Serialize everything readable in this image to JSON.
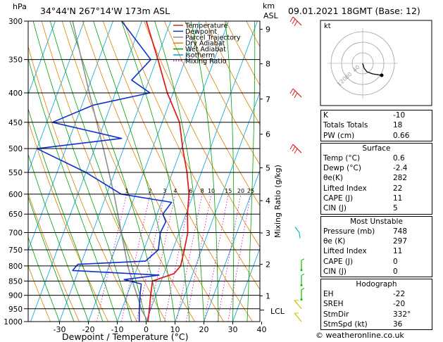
{
  "header": {
    "title": "34°44'N  267°14'W  173m  ASL",
    "datetime": "09.01.2021  18GMT  (Base: 12)",
    "pressure_unit": "hPa",
    "height_unit_km": "km",
    "height_unit_asl": "ASL"
  },
  "chart_data": {
    "type": "skew-t",
    "xlabel": "Dewpoint / Temperature (°C)",
    "right_label": "Mixing Ratio (g/kg)",
    "pressure_levels": [
      300,
      350,
      400,
      450,
      500,
      550,
      600,
      650,
      700,
      750,
      800,
      850,
      900,
      950,
      1000
    ],
    "temp_ticks": [
      -30,
      -20,
      -10,
      0,
      10,
      20,
      30,
      40
    ],
    "temp_range": [
      -35,
      40
    ],
    "height_ticks": [
      {
        "km": "9",
        "p": 310
      },
      {
        "km": "8",
        "p": 356
      },
      {
        "km": "7",
        "p": 410
      },
      {
        "km": "6",
        "p": 472
      },
      {
        "km": "5",
        "p": 540
      },
      {
        "km": "4",
        "p": 616
      },
      {
        "km": "3",
        "p": 701
      },
      {
        "km": "2",
        "p": 795
      },
      {
        "km": "1",
        "p": 902
      }
    ],
    "lcl_label": "LCL",
    "lcl_p": 955,
    "mixing_ratios": [
      "1",
      "2",
      "3",
      "4",
      "6",
      "8",
      "10",
      "15",
      "20",
      "25"
    ],
    "legend": [
      {
        "name": "Temperature",
        "color": "#e02020",
        "style": "solid"
      },
      {
        "name": "Dewpoint",
        "color": "#1030d0",
        "style": "solid"
      },
      {
        "name": "Parcel Trajectory",
        "color": "#909090",
        "style": "solid"
      },
      {
        "name": "Dry Adiabat",
        "color": "#e08000",
        "style": "solid"
      },
      {
        "name": "Wet Adiabat",
        "color": "#00a000",
        "style": "solid"
      },
      {
        "name": "Isotherm",
        "color": "#00a0e0",
        "style": "solid"
      },
      {
        "name": "Mixing Ratio",
        "color": "#d000d0",
        "style": "dotted"
      }
    ],
    "temperature": [
      {
        "p": 1000,
        "t": 0.6
      },
      {
        "p": 950,
        "t": -0.5
      },
      {
        "p": 900,
        "t": -1.8
      },
      {
        "p": 850,
        "t": -3.0
      },
      {
        "p": 825,
        "t": 3.5
      },
      {
        "p": 800,
        "t": 4.8
      },
      {
        "p": 750,
        "t": 4.0
      },
      {
        "p": 700,
        "t": 3.0
      },
      {
        "p": 650,
        "t": 0.5
      },
      {
        "p": 600,
        "t": -1.5
      },
      {
        "p": 550,
        "t": -5.0
      },
      {
        "p": 500,
        "t": -9.5
      },
      {
        "p": 450,
        "t": -14.0
      },
      {
        "p": 400,
        "t": -22.0
      },
      {
        "p": 350,
        "t": -29.5
      },
      {
        "p": 300,
        "t": -38.5
      }
    ],
    "dewpoint": [
      {
        "p": 1000,
        "t": -2.4
      },
      {
        "p": 950,
        "t": -4.0
      },
      {
        "p": 900,
        "t": -5.5
      },
      {
        "p": 860,
        "t": -6.5
      },
      {
        "p": 845,
        "t": -13.0
      },
      {
        "p": 830,
        "t": -1.5
      },
      {
        "p": 815,
        "t": -32.0
      },
      {
        "p": 795,
        "t": -31.0
      },
      {
        "p": 785,
        "t": -8.0
      },
      {
        "p": 750,
        "t": -5.0
      },
      {
        "p": 700,
        "t": -6.5
      },
      {
        "p": 670,
        "t": -6.0
      },
      {
        "p": 650,
        "t": -8.0
      },
      {
        "p": 620,
        "t": -6.5
      },
      {
        "p": 600,
        "t": -25.0
      },
      {
        "p": 550,
        "t": -40.0
      },
      {
        "p": 500,
        "t": -60.0
      },
      {
        "p": 480,
        "t": -32.0
      },
      {
        "p": 450,
        "t": -58.0
      },
      {
        "p": 420,
        "t": -46.0
      },
      {
        "p": 400,
        "t": -28.0
      },
      {
        "p": 380,
        "t": -36.0
      },
      {
        "p": 350,
        "t": -32.0
      },
      {
        "p": 300,
        "t": -47.0
      }
    ],
    "parcel": [
      {
        "p": 1000,
        "t": 0.6
      },
      {
        "p": 955,
        "t": -3.0
      },
      {
        "p": 900,
        "t": -6.5
      },
      {
        "p": 850,
        "t": -10.0
      },
      {
        "p": 800,
        "t": -13.5
      },
      {
        "p": 700,
        "t": -20.0
      },
      {
        "p": 600,
        "t": -27.5
      },
      {
        "p": 500,
        "t": -37.0
      },
      {
        "p": 400,
        "t": -49.0
      },
      {
        "p": 300,
        "t": -64.0
      }
    ],
    "wind_barbs": [
      {
        "p": 300,
        "color": "#e02020"
      },
      {
        "p": 400,
        "color": "#e02020"
      },
      {
        "p": 500,
        "color": "#e02020"
      },
      {
        "p": 700,
        "color": "#00c0c0"
      },
      {
        "p": 800,
        "color": "#00c000"
      },
      {
        "p": 850,
        "color": "#00c000"
      },
      {
        "p": 900,
        "color": "#00c000"
      },
      {
        "p": 950,
        "color": "#d0c000"
      },
      {
        "p": 1000,
        "color": "#d0c000"
      }
    ]
  },
  "hodograph": {
    "unit_label": "kt",
    "ring_labels": [
      "40",
      "80",
      "120"
    ]
  },
  "indices": [
    {
      "label": "K",
      "value": "-10"
    },
    {
      "label": "Totals Totals",
      "value": "18"
    },
    {
      "label": "PW (cm)",
      "value": "0.66"
    }
  ],
  "surface": {
    "title": "Surface",
    "rows": [
      {
        "label": "Temp (°C)",
        "value": "0.6"
      },
      {
        "label": "Dewp (°C)",
        "value": "-2.4"
      },
      {
        "label": "θe(K)",
        "value": "282"
      },
      {
        "label": "Lifted Index",
        "value": "22"
      },
      {
        "label": "CAPE (J)",
        "value": "11"
      },
      {
        "label": "CIN (J)",
        "value": "5"
      }
    ]
  },
  "most_unstable": {
    "title": "Most Unstable",
    "rows": [
      {
        "label": "Pressure (mb)",
        "value": "748"
      },
      {
        "label": "θe (K)",
        "value": "297"
      },
      {
        "label": "Lifted Index",
        "value": "11"
      },
      {
        "label": "CAPE (J)",
        "value": "0"
      },
      {
        "label": "CIN (J)",
        "value": "0"
      }
    ]
  },
  "hodograph_table": {
    "title": "Hodograph",
    "rows": [
      {
        "label": "EH",
        "value": "-22"
      },
      {
        "label": "SREH",
        "value": "-20"
      },
      {
        "label": "StmDir",
        "value": "332°"
      },
      {
        "label": "StmSpd (kt)",
        "value": "36"
      }
    ]
  },
  "copyright": "© weatheronline.co.uk"
}
